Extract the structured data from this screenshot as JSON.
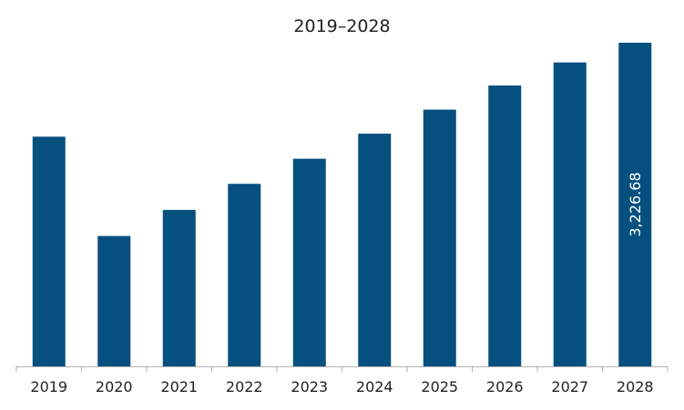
{
  "chart_data": {
    "type": "bar",
    "title": "2019–2028",
    "categories": [
      "2019",
      "2020",
      "2021",
      "2022",
      "2023",
      "2024",
      "2025",
      "2026",
      "2027",
      "2028"
    ],
    "values": [
      2290,
      1300,
      1560,
      1820,
      2070,
      2320,
      2560,
      2800,
      3030,
      3226.68
    ],
    "data_labels": [
      "",
      "",
      "",
      "",
      "",
      "",
      "",
      "",
      "",
      "3,226.68"
    ],
    "xlabel": "",
    "ylabel": "",
    "ylim": [
      0,
      3226.68
    ],
    "grid": false,
    "legend": "none",
    "bar_color": "#06507F",
    "axis_color": "#b0b0b0"
  }
}
